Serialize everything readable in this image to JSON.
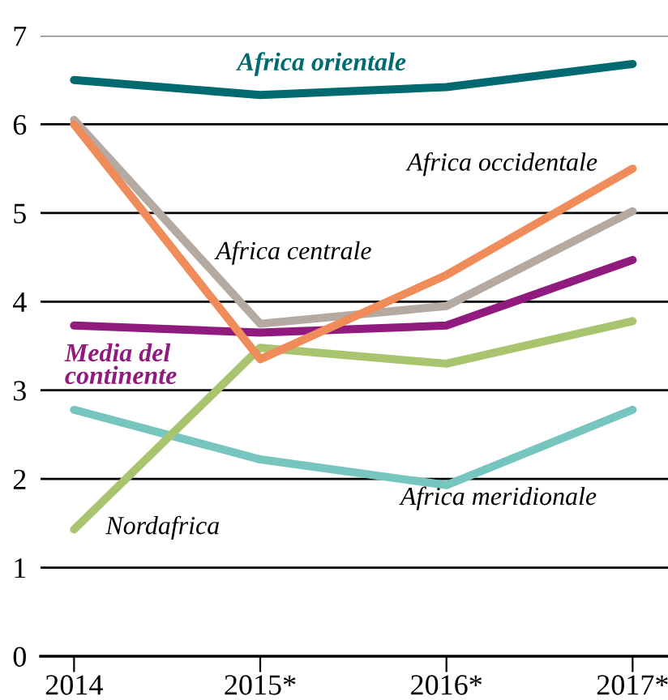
{
  "chart_data": {
    "type": "line",
    "categories": [
      "2014",
      "2015*",
      "2016*",
      "2017*"
    ],
    "ylim": [
      0,
      7
    ],
    "yticks": [
      0,
      1,
      2,
      3,
      4,
      5,
      6,
      7
    ],
    "grid": "y",
    "legend": false,
    "marker": "none",
    "line_style": "solid",
    "series": [
      {
        "name": "Africa orientale",
        "color": "#006a70",
        "values": [
          6.5,
          6.33,
          6.42,
          6.68
        ]
      },
      {
        "name": "Africa occidentale",
        "color": "#f08c5a",
        "values": [
          6.0,
          3.35,
          4.3,
          5.5
        ]
      },
      {
        "name": "Africa centrale",
        "color": "#b4aaa2",
        "values": [
          6.05,
          3.75,
          3.95,
          5.02
        ]
      },
      {
        "name": "Media del\ncontinente",
        "color": "#901a7e",
        "values": [
          3.73,
          3.65,
          3.73,
          4.47
        ]
      },
      {
        "name": "Nordafrica",
        "color": "#a9c46e",
        "values": [
          1.43,
          3.48,
          3.3,
          3.78
        ]
      },
      {
        "name": "Africa meridionale",
        "color": "#76c6bf",
        "values": [
          2.78,
          2.22,
          1.93,
          2.78
        ]
      }
    ]
  }
}
